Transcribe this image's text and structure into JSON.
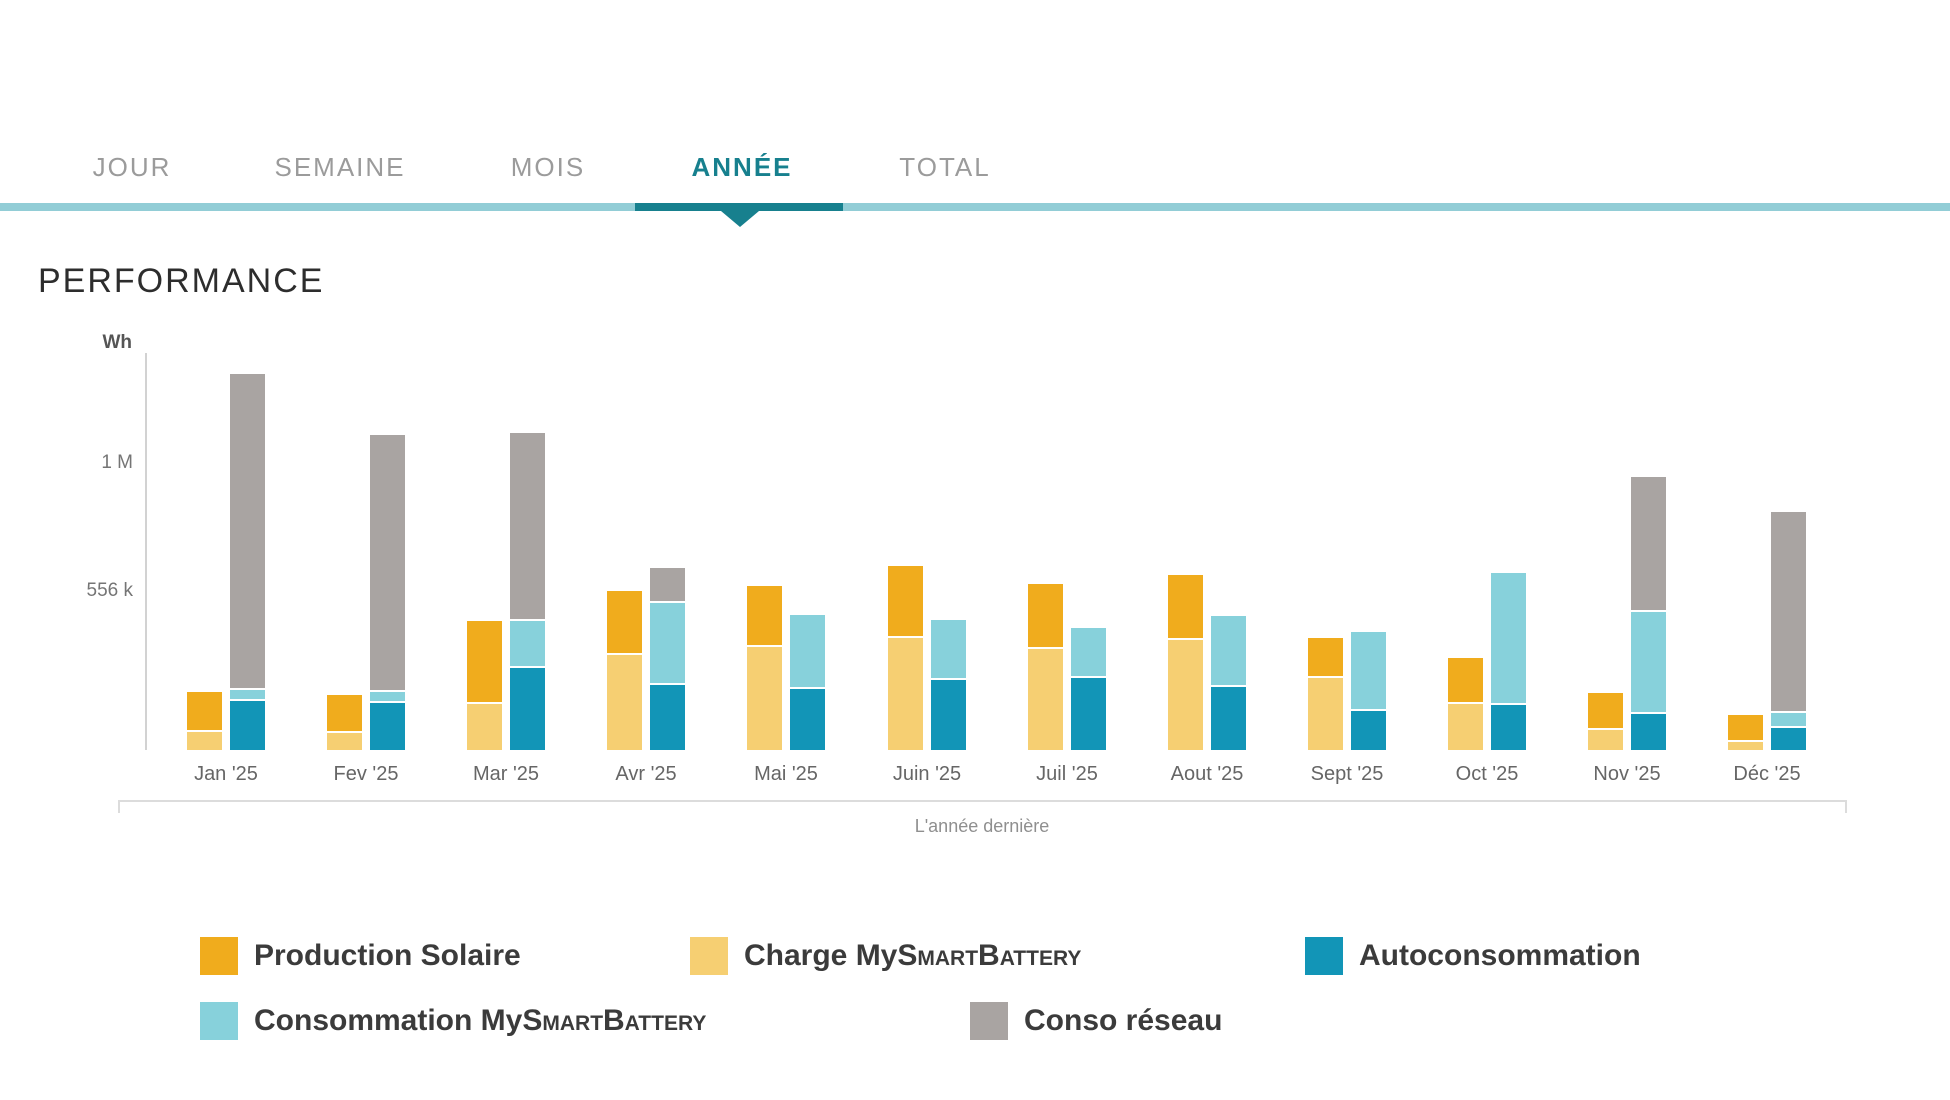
{
  "tabs": {
    "items": [
      {
        "label": "JOUR",
        "active": false
      },
      {
        "label": "SEMAINE",
        "active": false
      },
      {
        "label": "MOIS",
        "active": false
      },
      {
        "label": "ANNÉE",
        "active": true
      },
      {
        "label": "TOTAL",
        "active": false
      }
    ]
  },
  "title": "PERFORMANCE",
  "chart_data": {
    "type": "bar",
    "title": "PERFORMANCE",
    "unit": "Wh",
    "xlabel": "L'année dernière",
    "ylabel": "Wh",
    "grid": false,
    "legend_position": "bottom",
    "axis": {
      "ymax": 1385000,
      "ticks": [
        {
          "label": "1 M",
          "value": 1000000
        },
        {
          "label": "556 k",
          "value": 556000
        }
      ]
    },
    "categories": [
      "Jan '25",
      "Fev '25",
      "Mar '25",
      "Avr '25",
      "Mai '25",
      "Juin '25",
      "Juil '25",
      "Aout '25",
      "Sept '25",
      "Oct '25",
      "Nov '25",
      "Déc '25"
    ],
    "series": [
      {
        "name": "Production Solaire",
        "color": "#F0AC1D",
        "stack": "left",
        "values": [
          139000,
          132000,
          289000,
          223000,
          213000,
          251000,
          226000,
          226000,
          139000,
          160000,
          129000,
          94000
        ]
      },
      {
        "name": "Charge MySmartBattery",
        "color": "#F6CF72",
        "stack": "left",
        "values": [
          63000,
          59000,
          160000,
          331000,
          359000,
          390000,
          352000,
          383000,
          251000,
          160000,
          70000,
          28000
        ]
      },
      {
        "name": "Autoconsommation",
        "color": "#1295B7",
        "stack": "right",
        "values": [
          171000,
          164000,
          286000,
          226000,
          213000,
          244000,
          251000,
          220000,
          136000,
          157000,
          125000,
          77000
        ]
      },
      {
        "name": "Consommation MySmartBattery",
        "color": "#87D1DB",
        "stack": "right",
        "values": [
          38000,
          38000,
          164000,
          286000,
          258000,
          209000,
          174000,
          247000,
          275000,
          460000,
          355000,
          52000
        ]
      },
      {
        "name": "Conso réseau",
        "color": "#A9A4A2",
        "stack": "right",
        "values": [
          1101000,
          895000,
          655000,
          122000,
          7000,
          0,
          0,
          0,
          0,
          0,
          470000,
          700000
        ]
      }
    ],
    "stack_order": {
      "left": [
        "Charge MySmartBattery",
        "Production Solaire"
      ],
      "right": [
        "Autoconsommation",
        "Consommation MySmartBattery",
        "Conso réseau"
      ]
    }
  },
  "colors": {
    "tab_active": "#17808e",
    "tab_inactive": "#9b9b9b",
    "tab_bar_light": "#92cdd6",
    "tab_bar_dark": "#17808e"
  }
}
